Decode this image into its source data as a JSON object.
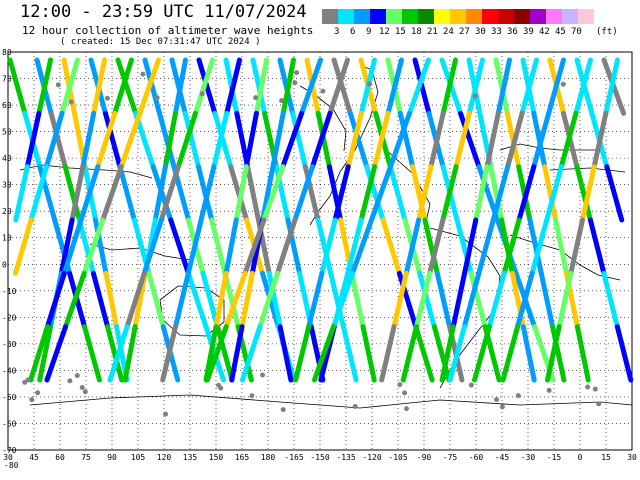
{
  "header": {
    "title": "12:00 - 23:59 UTC 11/07/2024",
    "subtitle": "12 hour collection of altimeter wave heights",
    "created": "( created: 15 Dec 07:31:47 UTC 2024 )"
  },
  "legend": {
    "unit": "(ft)",
    "colors": [
      "#808080",
      "#00e5ff",
      "#009dff",
      "#0000ff",
      "#66ff66",
      "#00c800",
      "#008c00",
      "#ffff00",
      "#ffc800",
      "#ff8c00",
      "#ff0000",
      "#c80000",
      "#8c0000",
      "#a000c8",
      "#ff78ff",
      "#c8b4ff",
      "#ffc8dc"
    ],
    "labels": [
      "3",
      "6",
      "9",
      "12",
      "15",
      "18",
      "21",
      "24",
      "27",
      "30",
      "33",
      "36",
      "39",
      "42",
      "45",
      "70"
    ]
  },
  "axes": {
    "lat_labels": [
      "80",
      "70",
      "60",
      "50",
      "40",
      "30",
      "20",
      "10",
      "0",
      "-10",
      "-20",
      "-30",
      "-40",
      "-50",
      "-60",
      "-70"
    ],
    "lon_labels": [
      "30",
      "45",
      "60",
      "75",
      "90",
      "105",
      "120",
      "135",
      "150",
      "165",
      "180",
      "-165",
      "-150",
      "-135",
      "-120",
      "-105",
      "-90",
      "-75",
      "-60",
      "-45",
      "-30",
      "-15",
      "0",
      "15",
      "30"
    ],
    "corner_label": "-80"
  }
}
